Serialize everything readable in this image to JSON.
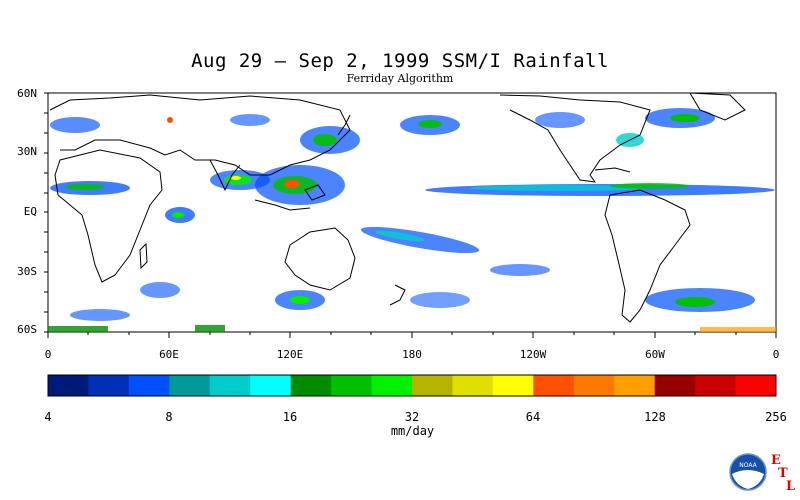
{
  "title": "Aug 29 – Sep 2, 1999 SSM/I Rainfall",
  "subtitle": "Ferriday Algorithm",
  "lat_labels": [
    "60N",
    "30N",
    "EQ",
    "30S",
    "60S"
  ],
  "lon_labels": [
    "0",
    "60E",
    "120E",
    "180",
    "120W",
    "60W",
    "0"
  ],
  "colorbar": {
    "colors": [
      "#001a7a",
      "#0030b8",
      "#0050ff",
      "#009a9a",
      "#00cccc",
      "#00ffff",
      "#008c00",
      "#00c000",
      "#00f000",
      "#b4b400",
      "#e0e000",
      "#ffff00",
      "#ff5000",
      "#ff7800",
      "#ffa000",
      "#960000",
      "#c80000",
      "#ff0000"
    ],
    "tick_labels": [
      "4",
      "8",
      "16",
      "32",
      "64",
      "128",
      "256"
    ],
    "units": "mm/day"
  },
  "logo": {
    "name": "noaa-logo",
    "text": "NOAA"
  },
  "etl_letters": [
    "E",
    "T",
    "L"
  ]
}
